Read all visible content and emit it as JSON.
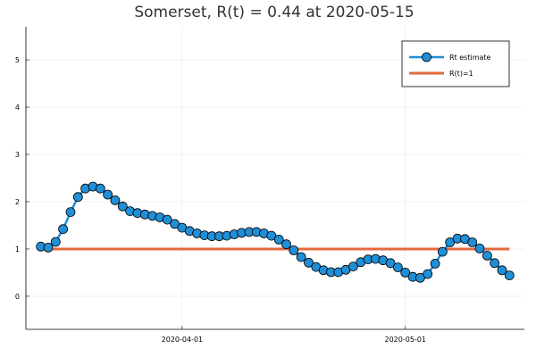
{
  "chart_data": {
    "type": "line",
    "title": "Somerset, R(t) = 0.44 at 2020-05-15",
    "xlabel": "",
    "ylabel": "",
    "x_start": "2020-03-13",
    "x_end": "2020-05-15",
    "xlim": [
      "2020-03-11",
      "2020-05-17"
    ],
    "ylim": [
      -0.7,
      5.7
    ],
    "yticks": [
      0,
      1,
      2,
      3,
      4,
      5
    ],
    "xticks": [
      "2020-04-01",
      "2020-05-01"
    ],
    "grid": true,
    "legend_position": "top-right",
    "series": [
      {
        "name": "Rt estimate",
        "color": "#1f8fd7",
        "marker": "circle",
        "values": [
          1.05,
          1.03,
          1.15,
          1.42,
          1.78,
          2.1,
          2.28,
          2.32,
          2.28,
          2.15,
          2.03,
          1.9,
          1.8,
          1.76,
          1.73,
          1.7,
          1.67,
          1.62,
          1.53,
          1.45,
          1.38,
          1.33,
          1.29,
          1.27,
          1.27,
          1.28,
          1.31,
          1.34,
          1.36,
          1.36,
          1.33,
          1.28,
          1.2,
          1.1,
          0.97,
          0.83,
          0.71,
          0.62,
          0.55,
          0.51,
          0.51,
          0.56,
          0.63,
          0.72,
          0.78,
          0.79,
          0.76,
          0.7,
          0.61,
          0.5,
          0.41,
          0.39,
          0.47,
          0.69,
          0.94,
          1.14,
          1.22,
          1.21,
          1.14,
          1.01,
          0.86,
          0.7,
          0.55,
          0.44
        ]
      },
      {
        "name": "R(t)=1",
        "color": "#e26a3d",
        "marker": "none",
        "values_constant": 1
      }
    ]
  }
}
